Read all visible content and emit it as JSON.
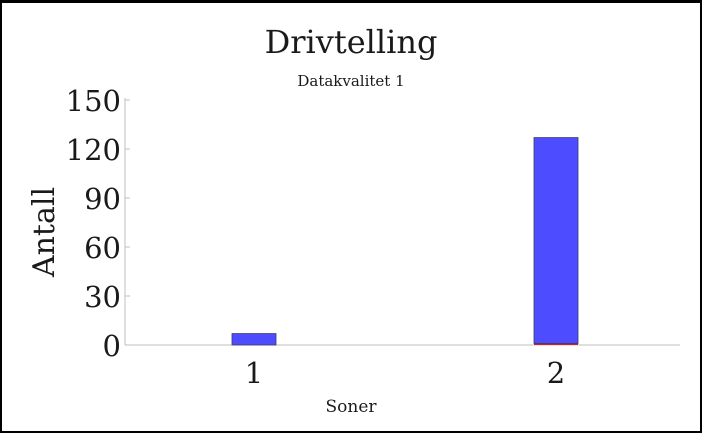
{
  "chart_data": {
    "type": "bar",
    "title": "Drivtelling",
    "subtitle": "Datakvalitet 1",
    "xlabel": "Soner",
    "ylabel": "Antall",
    "categories": [
      "1",
      "2"
    ],
    "stacked": true,
    "ylim": [
      0,
      150
    ],
    "yticks": [
      "0",
      "30",
      "60",
      "90",
      "120",
      "150"
    ],
    "grid": false,
    "series": [
      {
        "values": [
          0,
          1
        ],
        "color": "#c0242e"
      },
      {
        "values": [
          7,
          126
        ],
        "color": "#4d4dff"
      }
    ]
  }
}
